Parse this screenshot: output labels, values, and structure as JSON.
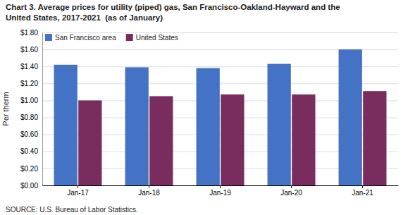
{
  "chart_data": {
    "type": "bar",
    "title": "Chart 3. Average prices for utility (piped) gas, San Francisco-Oakland-Hayward and the",
    "subtitle": "United States, 2017-2021  (as of January)",
    "ylabel": "Per therm",
    "source": "SOURCE: U.S. Bureau of Labor Statistics.",
    "categories": [
      "Jan-17",
      "Jan-18",
      "Jan-19",
      "Jan-20",
      "Jan-21"
    ],
    "series": [
      {
        "name": "San Francisco area",
        "color": "#4472C4",
        "values": [
          1.42,
          1.39,
          1.38,
          1.43,
          1.6
        ]
      },
      {
        "name": "United States",
        "color": "#7B2C5E",
        "values": [
          1.0,
          1.05,
          1.07,
          1.07,
          1.11
        ]
      }
    ],
    "ylim": [
      0.0,
      1.8
    ],
    "yticks": [
      {
        "value": 0.0,
        "label": "$0.00"
      },
      {
        "value": 0.2,
        "label": "$0.20"
      },
      {
        "value": 0.4,
        "label": "$0.40"
      },
      {
        "value": 0.6,
        "label": "$0.60"
      },
      {
        "value": 0.8,
        "label": "$0.80"
      },
      {
        "value": 1.0,
        "label": "$1.00"
      },
      {
        "value": 1.2,
        "label": "$1.20"
      },
      {
        "value": 1.4,
        "label": "$1.40"
      },
      {
        "value": 1.6,
        "label": "$1.60"
      },
      {
        "value": 1.8,
        "label": "$1.80"
      }
    ],
    "grid": true,
    "legend": "upper left"
  }
}
